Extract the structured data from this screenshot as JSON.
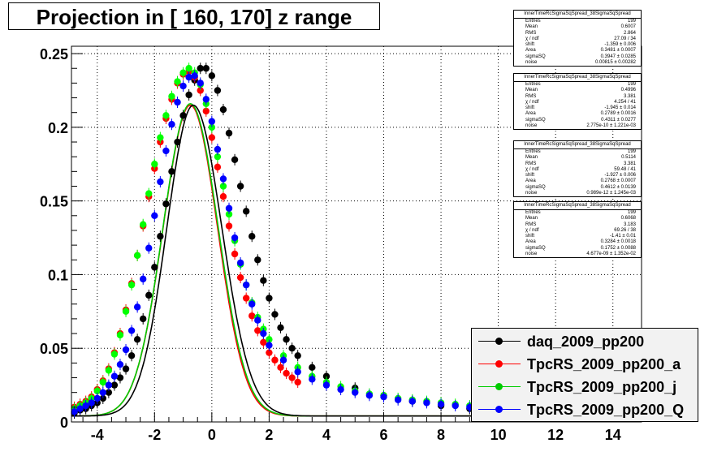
{
  "title": "Projection in [ 160, 170] z range",
  "chart_data": {
    "type": "scatter",
    "xlim": [
      -4.9,
      15
    ],
    "ylim": [
      0,
      0.255
    ],
    "x_ticks": [
      -4,
      -2,
      0,
      2,
      4,
      6,
      8,
      10,
      12,
      14
    ],
    "y_ticks": [
      0,
      0.05,
      0.1,
      0.15,
      0.2,
      0.25
    ],
    "x_tick_labels": [
      "-4",
      "-2",
      "0",
      "2",
      "4",
      "6",
      "8",
      "10",
      "12",
      "14"
    ],
    "y_tick_labels": [
      "0",
      "0.05",
      "0.1",
      "0.15",
      "0.2",
      "0.25"
    ],
    "grid": true,
    "legend_position": "bottom-right",
    "series": [
      {
        "name": "daq_2009_pp200",
        "color": "#000000",
        "x": [
          -4.8,
          -4.6,
          -4.4,
          -4.2,
          -4.0,
          -3.8,
          -3.6,
          -3.4,
          -3.2,
          -3.0,
          -2.8,
          -2.6,
          -2.4,
          -2.2,
          -2.0,
          -1.8,
          -1.6,
          -1.4,
          -1.2,
          -1.0,
          -0.8,
          -0.6,
          -0.4,
          -0.2,
          0.0,
          0.2,
          0.4,
          0.6,
          0.8,
          1.0,
          1.2,
          1.4,
          1.6,
          1.8,
          2.0,
          2.2,
          2.4,
          2.6,
          2.8,
          3.0,
          3.5,
          4.0,
          5.0,
          6.0,
          7.0,
          8.0,
          9.0
        ],
        "y": [
          0.006,
          0.008,
          0.009,
          0.011,
          0.013,
          0.016,
          0.02,
          0.025,
          0.03,
          0.036,
          0.045,
          0.056,
          0.07,
          0.086,
          0.105,
          0.126,
          0.148,
          0.17,
          0.19,
          0.208,
          0.222,
          0.232,
          0.24,
          0.24,
          0.235,
          0.225,
          0.212,
          0.196,
          0.178,
          0.16,
          0.143,
          0.126,
          0.11,
          0.096,
          0.084,
          0.073,
          0.064,
          0.056,
          0.05,
          0.045,
          0.037,
          0.031,
          0.023,
          0.018,
          0.014,
          0.011,
          0.009
        ]
      },
      {
        "name": "TpcRS_2009_pp200_a",
        "color": "#ff0000",
        "x": [
          -4.8,
          -4.6,
          -4.4,
          -4.2,
          -4.0,
          -3.8,
          -3.6,
          -3.4,
          -3.2,
          -3.0,
          -2.8,
          -2.6,
          -2.4,
          -2.2,
          -2.0,
          -1.8,
          -1.6,
          -1.4,
          -1.2,
          -1.0,
          -0.8,
          -0.6,
          -0.4,
          -0.2,
          0.0,
          0.2,
          0.4,
          0.6,
          0.8,
          1.0,
          1.2,
          1.4,
          1.6,
          1.8,
          2.0,
          2.2,
          2.4,
          2.6,
          2.8,
          3.0
        ],
        "y": [
          0.01,
          0.012,
          0.014,
          0.017,
          0.022,
          0.028,
          0.036,
          0.047,
          0.06,
          0.076,
          0.094,
          0.113,
          0.133,
          0.153,
          0.172,
          0.19,
          0.206,
          0.219,
          0.23,
          0.236,
          0.238,
          0.234,
          0.225,
          0.211,
          0.193,
          0.173,
          0.153,
          0.133,
          0.114,
          0.098,
          0.084,
          0.072,
          0.062,
          0.054,
          0.047,
          0.042,
          0.037,
          0.033,
          0.03,
          0.027
        ]
      },
      {
        "name": "TpcRS_2009_pp200_j",
        "color": "#00ff00",
        "x": [
          -4.8,
          -4.6,
          -4.4,
          -4.2,
          -4.0,
          -3.8,
          -3.6,
          -3.4,
          -3.2,
          -3.0,
          -2.8,
          -2.6,
          -2.4,
          -2.2,
          -2.0,
          -1.8,
          -1.6,
          -1.4,
          -1.2,
          -1.0,
          -0.8,
          -0.6,
          -0.4,
          -0.2,
          0.0,
          0.2,
          0.4,
          0.6,
          0.8,
          1.0,
          1.2,
          1.4,
          1.6,
          1.8,
          2.0,
          2.5,
          3.0,
          3.5,
          4.0,
          4.5,
          5.0,
          5.5,
          6.0,
          6.5,
          7.0,
          7.5,
          8.0,
          8.5,
          9.0
        ],
        "y": [
          0.009,
          0.011,
          0.013,
          0.016,
          0.021,
          0.027,
          0.035,
          0.046,
          0.059,
          0.075,
          0.093,
          0.113,
          0.134,
          0.155,
          0.175,
          0.193,
          0.208,
          0.221,
          0.231,
          0.237,
          0.24,
          0.237,
          0.229,
          0.216,
          0.2,
          0.18,
          0.16,
          0.141,
          0.123,
          0.107,
          0.093,
          0.081,
          0.071,
          0.063,
          0.056,
          0.045,
          0.037,
          0.031,
          0.027,
          0.024,
          0.021,
          0.019,
          0.018,
          0.016,
          0.015,
          0.014,
          0.013,
          0.012,
          0.011
        ]
      },
      {
        "name": "TpcRS_2009_pp200_Q",
        "color": "#0000ff",
        "x": [
          -4.8,
          -4.6,
          -4.4,
          -4.2,
          -4.0,
          -3.8,
          -3.6,
          -3.4,
          -3.2,
          -3.0,
          -2.8,
          -2.6,
          -2.4,
          -2.2,
          -2.0,
          -1.8,
          -1.6,
          -1.4,
          -1.2,
          -1.0,
          -0.8,
          -0.6,
          -0.4,
          -0.2,
          0.0,
          0.2,
          0.4,
          0.6,
          0.8,
          1.0,
          1.2,
          1.4,
          1.6,
          1.8,
          2.0,
          2.5,
          3.0,
          3.5,
          4.0,
          4.5,
          5.0,
          5.5,
          6.0,
          6.5,
          7.0,
          7.5,
          8.0,
          8.5,
          9.0
        ],
        "y": [
          0.007,
          0.009,
          0.011,
          0.013,
          0.016,
          0.02,
          0.025,
          0.031,
          0.039,
          0.049,
          0.062,
          0.078,
          0.097,
          0.118,
          0.14,
          0.163,
          0.184,
          0.202,
          0.217,
          0.228,
          0.234,
          0.235,
          0.23,
          0.219,
          0.204,
          0.185,
          0.165,
          0.145,
          0.125,
          0.108,
          0.093,
          0.08,
          0.069,
          0.06,
          0.052,
          0.042,
          0.034,
          0.029,
          0.025,
          0.022,
          0.02,
          0.018,
          0.017,
          0.015,
          0.014,
          0.013,
          0.012,
          0.011,
          0.01
        ]
      }
    ],
    "fit_curves": [
      {
        "name": "TpcRS_2009_pp200_a",
        "color": "#ff0000",
        "peak_x": -0.75,
        "peak_y": 0.211,
        "sigma_left": 0.95,
        "sigma_right": 0.95
      },
      {
        "name": "TpcRS_2009_pp200_j",
        "color": "#00cc00",
        "peak_x": -0.75,
        "peak_y": 0.212,
        "sigma_left": 0.95,
        "sigma_right": 0.97
      },
      {
        "name": "daq_2009_pp200",
        "color": "#000000",
        "peak_x": -0.65,
        "peak_y": 0.211,
        "sigma_left": 0.92,
        "sigma_right": 1.0
      }
    ]
  },
  "stats_boxes": [
    {
      "header": "InnerTimeRcSigmaSqSpread_38SigmaSqSpread",
      "rows": [
        [
          "Entries",
          "199"
        ],
        [
          "Mean",
          "0.6007"
        ],
        [
          "RMS",
          "2.864"
        ],
        [
          "χ  / ndf",
          "27.09 / 34"
        ],
        [
          "shift",
          "-1.359 ± 0.006"
        ],
        [
          "Area",
          "0.3481 ± 0.0007"
        ],
        [
          "sigmaSQ",
          "0.3947 ± 0.0285"
        ],
        [
          "noise",
          "0.00815 ± 0.00282"
        ]
      ]
    },
    {
      "header": "InnerTimeRcSigmaSqSpread_38SigmaSqSpread",
      "rows": [
        [
          "Entries",
          "199"
        ],
        [
          "Mean",
          "0.4996"
        ],
        [
          "RMS",
          "3.381"
        ],
        [
          "χ  / ndf",
          "4.254 / 41"
        ],
        [
          "shift",
          "-1.945 ± 0.014"
        ],
        [
          "Area",
          "0.2789 ± 0.0016"
        ],
        [
          "sigmaSQ",
          "0.4311 ± 0.0277"
        ],
        [
          "noise",
          "2.775e-10 ± 1.221e-03"
        ]
      ]
    },
    {
      "header": "InnerTimeRcSigmaSqSpread_38SigmaSqSpread",
      "rows": [
        [
          "Entries",
          "199"
        ],
        [
          "Mean",
          "0.5114"
        ],
        [
          "RMS",
          "3.381"
        ],
        [
          "χ  / ndf",
          "59.48 / 41"
        ],
        [
          "shift",
          "-1.927 ± 0.006"
        ],
        [
          "Area",
          "0.2768 ± 0.0007"
        ],
        [
          "sigmaSQ",
          "0.4612 ± 0.0139"
        ],
        [
          "noise",
          "0.989e-12 ± 1.245e-03"
        ]
      ]
    },
    {
      "header": "InnerTimeRcSigmaSqSpread_38SigmaSqSpread",
      "rows": [
        [
          "Entries",
          "199"
        ],
        [
          "Mean",
          "0.6068"
        ],
        [
          "RMS",
          "3.183"
        ],
        [
          "χ  / ndf",
          "69.26 / 38"
        ],
        [
          "shift",
          "-1.41 ± 0.01"
        ],
        [
          "Area",
          "0.3284 ± 0.0018"
        ],
        [
          "sigmaSQ",
          "0.1752 ± 0.0088"
        ],
        [
          "noise",
          "4.677e-09 ± 1.352e-02"
        ]
      ]
    }
  ],
  "legend": [
    {
      "label": "daq_2009_pp200",
      "color": "#000000"
    },
    {
      "label": "TpcRS_2009_pp200_a",
      "color": "#ff0000"
    },
    {
      "label": "TpcRS_2009_pp200_j",
      "color": "#00cc00"
    },
    {
      "label": "TpcRS_2009_pp200_Q",
      "color": "#0000ff"
    }
  ]
}
